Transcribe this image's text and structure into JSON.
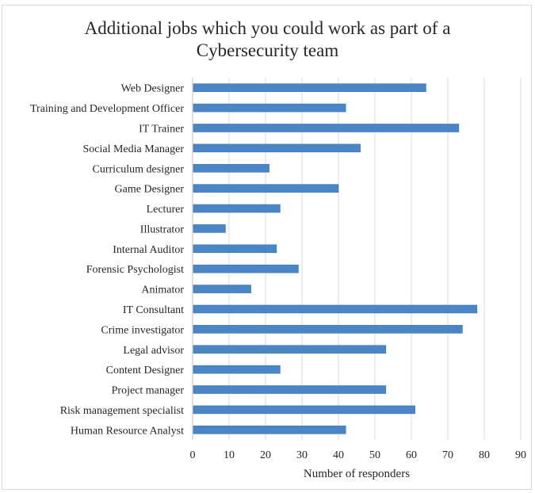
{
  "chart_data": {
    "type": "bar",
    "orientation": "horizontal",
    "title": "Additional  jobs which  you could work as part of a\nCybersecurity team",
    "xlabel": "Number  of responders",
    "ylabel": "",
    "xlim": [
      0,
      90
    ],
    "x_ticks": [
      "0",
      "10",
      "20",
      "30",
      "40",
      "50",
      "60",
      "70",
      "80",
      "90"
    ],
    "grid": "vertical",
    "bar_color": "#4a86c6",
    "categories": [
      "Web Designer",
      "Training and Development Officer",
      "IT Trainer",
      "Social Media Manager",
      "Curriculum designer",
      "Game Designer",
      "Lecturer",
      "Illustrator",
      "Internal Auditor",
      "Forensic Psychologist",
      "Animator",
      "IT Consultant",
      "Crime investigator",
      "Legal advisor",
      "Content Designer",
      "Project manager",
      "Risk management specialist",
      "Human Resource Analyst"
    ],
    "values": [
      64,
      42,
      73,
      46,
      21,
      40,
      24,
      9,
      23,
      29,
      16,
      78,
      74,
      53,
      24,
      53,
      61,
      42
    ]
  }
}
